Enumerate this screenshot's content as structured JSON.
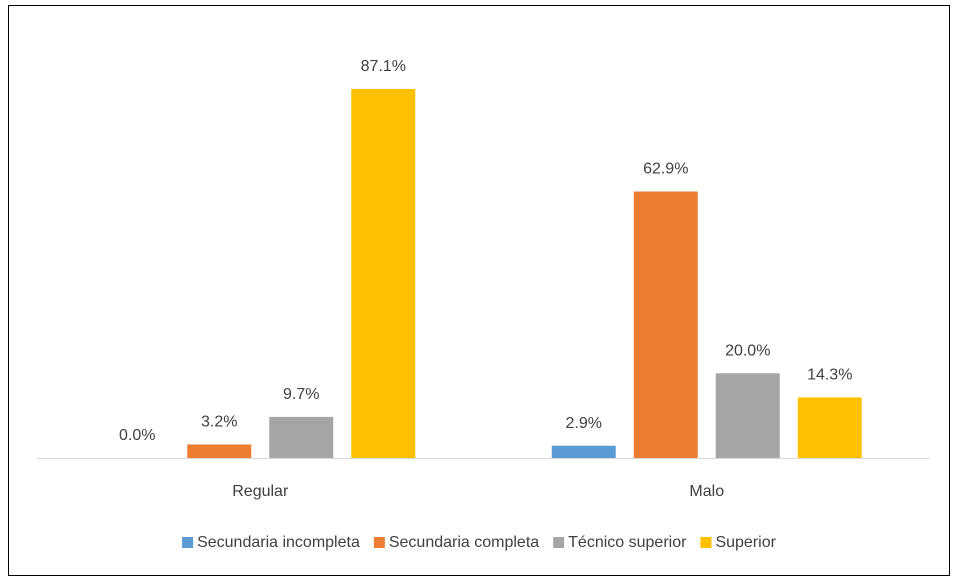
{
  "chart_data": {
    "type": "bar",
    "categories": [
      "Regular",
      "Malo"
    ],
    "series": [
      {
        "name": "Secundaria incompleta",
        "color": "#5b9bd5",
        "values": [
          0.0,
          2.9
        ],
        "value_labels": [
          "0.0%",
          "2.9%"
        ]
      },
      {
        "name": "Secundaria completa",
        "color": "#ed7d31",
        "values": [
          3.2,
          62.9
        ],
        "value_labels": [
          "3.2%",
          "62.9%"
        ]
      },
      {
        "name": "Técnico superior",
        "color": "#a5a5a5",
        "values": [
          9.7,
          20.0
        ],
        "value_labels": [
          "9.7%",
          "20.0%"
        ]
      },
      {
        "name": "Superior",
        "color": "#ffc000",
        "values": [
          87.1,
          14.3
        ],
        "value_labels": [
          "87.1%",
          "14.3%"
        ]
      }
    ],
    "legend": "bottom"
  }
}
